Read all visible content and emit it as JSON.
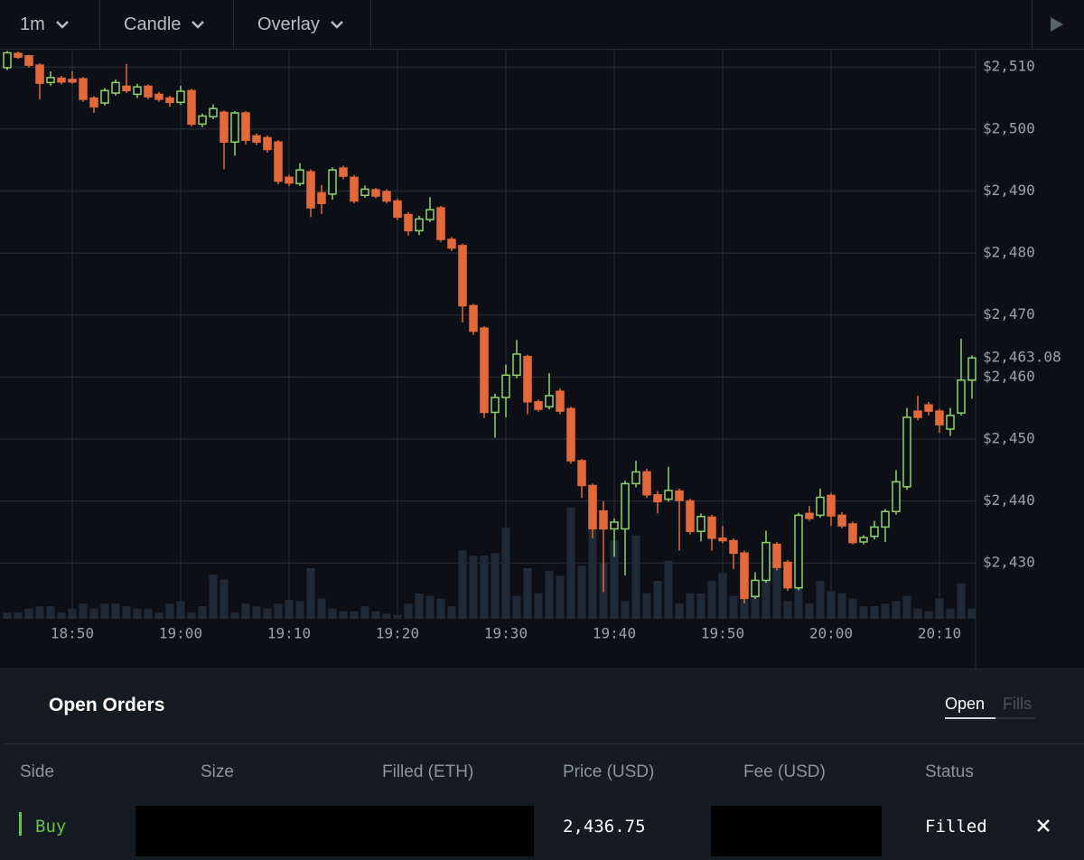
{
  "toolbar": [
    "1m",
    "Candle",
    "Overlay"
  ],
  "chart_data": {
    "type": "candlestick",
    "categories": [
      null,
      null,
      null,
      null,
      null,
      null,
      "18:50",
      null,
      null,
      null,
      null,
      null,
      null,
      null,
      null,
      null,
      "19:00",
      null,
      null,
      null,
      null,
      null,
      null,
      null,
      null,
      null,
      "19:10",
      null,
      null,
      null,
      null,
      null,
      null,
      null,
      null,
      null,
      "19:20",
      null,
      null,
      null,
      null,
      null,
      null,
      null,
      null,
      null,
      "19:30",
      null,
      null,
      null,
      null,
      null,
      null,
      null,
      null,
      null,
      "19:40",
      null,
      null,
      null,
      null,
      null,
      null,
      null,
      null,
      null,
      "19:50",
      null,
      null,
      null,
      null,
      null,
      null,
      null,
      null,
      null,
      "20:00",
      null,
      null,
      null,
      null,
      null,
      null,
      null,
      null,
      null,
      "20:10",
      null,
      null,
      null
    ],
    "open": [
      2509.9,
      2512.2,
      2511.8,
      2510.3,
      2507.5,
      2508.2,
      2508.0,
      2508.1,
      2505.0,
      2504.2,
      2505.8,
      2506.9,
      2505.6,
      2506.9,
      2505.6,
      2505.0,
      2504.3,
      2506.2,
      2500.8,
      2502.0,
      2502.7,
      2497.9,
      2502.6,
      2498.9,
      2498.6,
      2497.9,
      2492.2,
      2491.2,
      2493.1,
      2489.7,
      2489.5,
      2493.7,
      2492.2,
      2489.3,
      2490.2,
      2489.9,
      2488.4,
      2486.2,
      2483.6,
      2485.4,
      2487.3,
      2482.2,
      2481.2,
      2471.5,
      2467.9,
      2454.3,
      2456.7,
      2460.3,
      2463.3,
      2456.0,
      2455.2,
      2457.7,
      2454.9,
      2446.5,
      2442.5,
      2438.4,
      2435.5,
      2435.5,
      2442.8,
      2444.7,
      2441.0,
      2440.3,
      2441.6,
      2440.0,
      2435.1,
      2437.4,
      2434.0,
      2433.6,
      2431.6,
      2424.6,
      2427.2,
      2433.0,
      2430.1,
      2426.0,
      2438.0,
      2437.7,
      2440.9,
      2437.7,
      2436.3,
      2433.4,
      2434.3,
      2435.8,
      2438.3,
      2442.3,
      2454.5,
      2455.5,
      2454.5,
      2451.6,
      2454.2,
      2459.5
    ],
    "high": [
      2512.6,
      2512.5,
      2512.0,
      2510.6,
      2509.3,
      2508.6,
      2509.3,
      2508.4,
      2505.3,
      2506.6,
      2508.0,
      2510.5,
      2507.3,
      2507.2,
      2506.0,
      2505.4,
      2507.0,
      2506.5,
      2502.5,
      2504.0,
      2503.0,
      2502.9,
      2502.9,
      2499.3,
      2499.0,
      2498.2,
      2492.6,
      2494.5,
      2493.5,
      2491.0,
      2493.8,
      2494.1,
      2492.6,
      2490.9,
      2490.5,
      2490.3,
      2488.8,
      2486.6,
      2486.0,
      2489.0,
      2487.6,
      2482.6,
      2481.5,
      2471.8,
      2468.2,
      2457.3,
      2462.0,
      2466.0,
      2463.6,
      2456.4,
      2460.6,
      2458.2,
      2455.2,
      2446.8,
      2442.8,
      2440.0,
      2437.2,
      2443.3,
      2446.5,
      2445.2,
      2441.6,
      2445.5,
      2442.0,
      2440.4,
      2438.0,
      2437.8,
      2436.0,
      2434.0,
      2432.0,
      2428.5,
      2435.2,
      2433.4,
      2430.5,
      2438.1,
      2439.2,
      2442.0,
      2441.3,
      2438.2,
      2436.7,
      2434.5,
      2436.8,
      2438.7,
      2445.0,
      2455.0,
      2457.0,
      2456.0,
      2454.9,
      2455.0,
      2466.2,
      2463.5
    ],
    "low": [
      2509.5,
      2511.3,
      2509.9,
      2504.8,
      2507.0,
      2507.2,
      2507.3,
      2504.4,
      2502.6,
      2503.8,
      2505.4,
      2505.8,
      2505.0,
      2504.8,
      2504.4,
      2503.6,
      2503.9,
      2500.4,
      2500.3,
      2501.6,
      2493.5,
      2495.7,
      2497.5,
      2497.4,
      2496.2,
      2491.1,
      2490.8,
      2490.8,
      2485.8,
      2486.3,
      2488.6,
      2491.9,
      2488.0,
      2488.9,
      2488.8,
      2488.0,
      2485.3,
      2482.8,
      2482.9,
      2485.0,
      2481.8,
      2480.3,
      2468.8,
      2466.8,
      2453.4,
      2450.2,
      2453.5,
      2459.8,
      2454.0,
      2454.4,
      2454.8,
      2454.0,
      2446.0,
      2440.5,
      2434.0,
      2425.3,
      2431.0,
      2428.0,
      2442.2,
      2440.5,
      2438.0,
      2439.9,
      2432.0,
      2434.6,
      2433.5,
      2432.0,
      2433.2,
      2429.0,
      2423.5,
      2424.2,
      2426.8,
      2428.8,
      2425.5,
      2425.6,
      2436.8,
      2437.3,
      2436.0,
      2435.6,
      2433.0,
      2433.0,
      2433.8,
      2433.4,
      2437.8,
      2441.8,
      2453.0,
      2453.8,
      2451.0,
      2450.5,
      2453.8,
      2456.5
    ],
    "close": [
      2512.3,
      2511.6,
      2510.3,
      2507.4,
      2508.3,
      2507.6,
      2507.6,
      2504.8,
      2503.6,
      2506.2,
      2507.5,
      2506.2,
      2506.8,
      2505.2,
      2504.8,
      2504.3,
      2506.1,
      2500.8,
      2502.1,
      2503.3,
      2497.9,
      2502.6,
      2498.2,
      2497.9,
      2496.7,
      2491.6,
      2491.3,
      2493.4,
      2487.3,
      2488.0,
      2493.4,
      2492.4,
      2488.4,
      2490.3,
      2489.2,
      2488.4,
      2485.8,
      2483.6,
      2485.5,
      2487.0,
      2482.2,
      2480.8,
      2471.5,
      2467.4,
      2454.3,
      2456.7,
      2460.3,
      2463.7,
      2456.0,
      2454.8,
      2457.0,
      2454.5,
      2446.5,
      2442.5,
      2435.5,
      2435.5,
      2436.6,
      2442.8,
      2444.7,
      2441.0,
      2439.9,
      2441.7,
      2440.1,
      2435.1,
      2437.5,
      2434.0,
      2433.6,
      2431.6,
      2424.3,
      2427.2,
      2433.3,
      2429.3,
      2426.0,
      2437.7,
      2437.2,
      2440.6,
      2437.6,
      2436.0,
      2433.3,
      2434.1,
      2435.8,
      2438.3,
      2443.1,
      2453.5,
      2453.5,
      2454.5,
      2452.3,
      2453.8,
      2459.5,
      2463.08
    ],
    "volume": [
      5,
      5,
      8,
      10,
      10,
      5,
      8,
      12,
      8,
      12,
      12,
      10,
      8,
      8,
      5,
      12,
      14,
      5,
      10,
      35,
      31,
      5,
      12,
      10,
      8,
      12,
      15,
      14,
      40,
      16,
      8,
      6,
      6,
      10,
      6,
      4,
      3,
      12,
      20,
      18,
      16,
      10,
      54,
      50,
      50,
      52,
      72,
      18,
      40,
      20,
      38,
      34,
      88,
      42,
      70,
      44,
      62,
      14,
      66,
      20,
      30,
      46,
      12,
      20,
      20,
      30,
      36,
      18,
      34,
      26,
      36,
      46,
      14,
      36,
      12,
      30,
      22,
      20,
      16,
      10,
      10,
      12,
      14,
      18,
      8,
      6,
      16,
      8,
      28,
      8
    ],
    "volume_ylim": [
      0,
      100
    ],
    "up_color": "#8fd36a",
    "down_color": "#e3693a",
    "volume_color": "#1f2a36",
    "ylim": [
      2421,
      2512.8
    ],
    "yticks": [
      {
        "value": 2430,
        "label": "$2,430"
      },
      {
        "value": 2440,
        "label": "$2,440"
      },
      {
        "value": 2450,
        "label": "$2,450"
      },
      {
        "value": 2460,
        "label": "$2,460"
      },
      {
        "value": 2470,
        "label": "$2,470"
      },
      {
        "value": 2480,
        "label": "$2,480"
      },
      {
        "value": 2490,
        "label": "$2,490"
      },
      {
        "value": 2500,
        "label": "$2,500"
      },
      {
        "value": 2510,
        "label": "$2,510"
      }
    ],
    "last_price": {
      "value": 2463.08,
      "label": "$2,463.08"
    },
    "grid": true
  },
  "orders": {
    "title": "Open Orders",
    "tabs": [
      "Open",
      "Fills"
    ],
    "columns": [
      "Side",
      "Size",
      "Filled (ETH)",
      "Price (USD)",
      "Fee (USD)",
      "Status"
    ],
    "rows": [
      {
        "side": "Buy",
        "price": "2,436.75",
        "status": "Filled"
      }
    ]
  }
}
